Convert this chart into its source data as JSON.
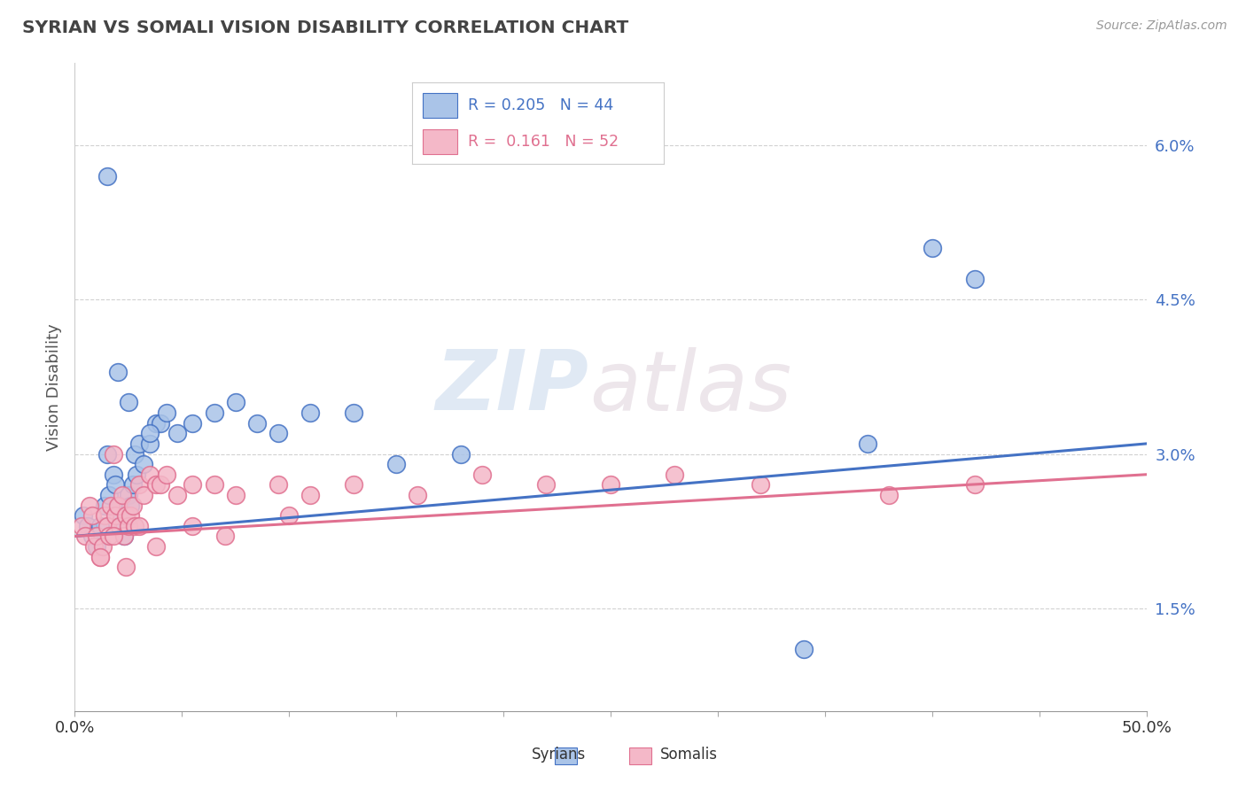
{
  "title": "SYRIAN VS SOMALI VISION DISABILITY CORRELATION CHART",
  "source": "Source: ZipAtlas.com",
  "ylabel": "Vision Disability",
  "xlim": [
    0.0,
    0.5
  ],
  "ylim": [
    0.005,
    0.068
  ],
  "yticks": [
    0.015,
    0.03,
    0.045,
    0.06
  ],
  "ytick_labels": [
    "1.5%",
    "3.0%",
    "4.5%",
    "6.0%"
  ],
  "xticks": [
    0.0,
    0.05,
    0.1,
    0.15,
    0.2,
    0.25,
    0.3,
    0.35,
    0.4,
    0.45,
    0.5
  ],
  "bg_color": "#ffffff",
  "grid_color": "#cccccc",
  "syrian_color": "#aac4e8",
  "somali_color": "#f4b8c8",
  "syrian_line_color": "#4472c4",
  "somali_line_color": "#e07090",
  "watermark_zip": "ZIP",
  "watermark_atlas": "atlas",
  "syrians_x": [
    0.004,
    0.006,
    0.008,
    0.01,
    0.012,
    0.014,
    0.015,
    0.016,
    0.018,
    0.019,
    0.02,
    0.021,
    0.022,
    0.023,
    0.024,
    0.025,
    0.026,
    0.027,
    0.028,
    0.029,
    0.03,
    0.032,
    0.035,
    0.038,
    0.04,
    0.043,
    0.048,
    0.055,
    0.065,
    0.075,
    0.085,
    0.095,
    0.11,
    0.13,
    0.015,
    0.02,
    0.025,
    0.035,
    0.37,
    0.42,
    0.15,
    0.18,
    0.34,
    0.4
  ],
  "syrians_y": [
    0.024,
    0.023,
    0.022,
    0.021,
    0.023,
    0.025,
    0.03,
    0.026,
    0.028,
    0.027,
    0.024,
    0.025,
    0.023,
    0.022,
    0.024,
    0.026,
    0.025,
    0.027,
    0.03,
    0.028,
    0.031,
    0.029,
    0.031,
    0.033,
    0.033,
    0.034,
    0.032,
    0.033,
    0.034,
    0.035,
    0.033,
    0.032,
    0.034,
    0.034,
    0.057,
    0.038,
    0.035,
    0.032,
    0.031,
    0.047,
    0.029,
    0.03,
    0.011,
    0.05
  ],
  "somalis_x": [
    0.003,
    0.005,
    0.007,
    0.008,
    0.009,
    0.01,
    0.012,
    0.013,
    0.014,
    0.015,
    0.016,
    0.017,
    0.018,
    0.019,
    0.02,
    0.021,
    0.022,
    0.023,
    0.024,
    0.025,
    0.026,
    0.027,
    0.028,
    0.03,
    0.032,
    0.035,
    0.038,
    0.04,
    0.043,
    0.048,
    0.055,
    0.065,
    0.075,
    0.095,
    0.11,
    0.13,
    0.16,
    0.19,
    0.22,
    0.25,
    0.28,
    0.32,
    0.38,
    0.42,
    0.012,
    0.018,
    0.024,
    0.03,
    0.038,
    0.055,
    0.07,
    0.1
  ],
  "somalis_y": [
    0.023,
    0.022,
    0.025,
    0.024,
    0.021,
    0.022,
    0.02,
    0.021,
    0.024,
    0.023,
    0.022,
    0.025,
    0.03,
    0.024,
    0.025,
    0.023,
    0.026,
    0.022,
    0.024,
    0.023,
    0.024,
    0.025,
    0.023,
    0.027,
    0.026,
    0.028,
    0.027,
    0.027,
    0.028,
    0.026,
    0.027,
    0.027,
    0.026,
    0.027,
    0.026,
    0.027,
    0.026,
    0.028,
    0.027,
    0.027,
    0.028,
    0.027,
    0.026,
    0.027,
    0.02,
    0.022,
    0.019,
    0.023,
    0.021,
    0.023,
    0.022,
    0.024
  ],
  "syrian_trend_x": [
    0.0,
    0.5
  ],
  "syrian_trend_y": [
    0.022,
    0.031
  ],
  "somali_trend_x": [
    0.0,
    0.5
  ],
  "somali_trend_y": [
    0.022,
    0.028
  ]
}
